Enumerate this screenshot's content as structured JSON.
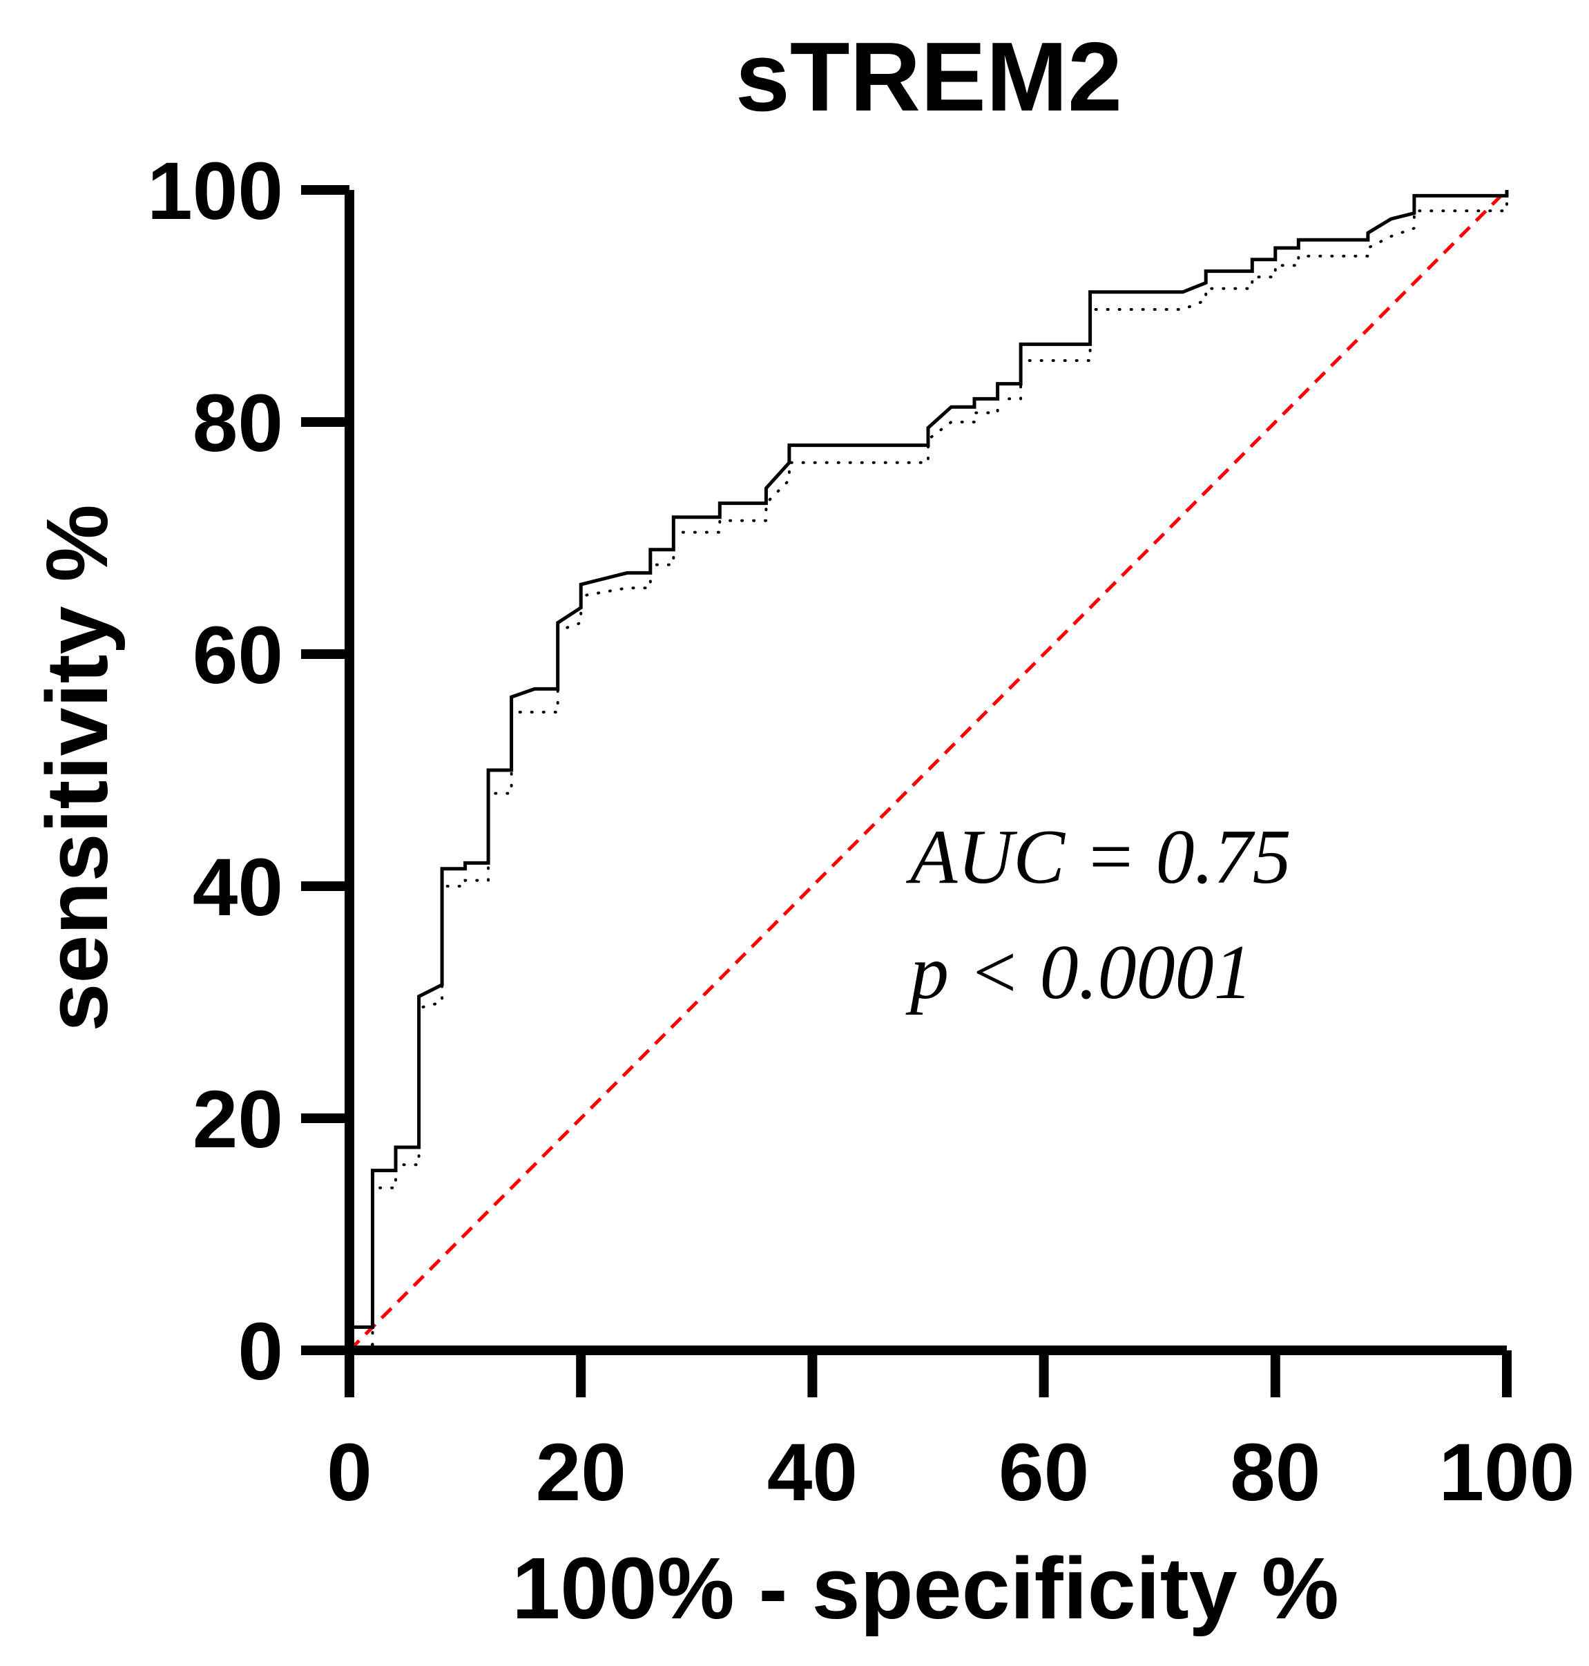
{
  "chart_data": {
    "type": "line",
    "title": "sTREM2",
    "xlabel": "100% - specificity %",
    "ylabel": "sensitivity %",
    "xlim": [
      0,
      100
    ],
    "ylim": [
      0,
      100
    ],
    "xticks": [
      0,
      20,
      40,
      60,
      80,
      100
    ],
    "yticks": [
      0,
      20,
      40,
      60,
      80,
      100
    ],
    "grid": false,
    "series": [
      {
        "role": "roc",
        "style": "solid",
        "color": "#000000",
        "points": [
          [
            0,
            0
          ],
          [
            0,
            2
          ],
          [
            2,
            2
          ],
          [
            2,
            15.5
          ],
          [
            4,
            15.5
          ],
          [
            4,
            17.5
          ],
          [
            6,
            17.5
          ],
          [
            6,
            30.5
          ],
          [
            8,
            31.5
          ],
          [
            8,
            41.5
          ],
          [
            10,
            41.5
          ],
          [
            10,
            42
          ],
          [
            12,
            42
          ],
          [
            12,
            50
          ],
          [
            14,
            50
          ],
          [
            14,
            56.3
          ],
          [
            16,
            57
          ],
          [
            18,
            57
          ],
          [
            18,
            62.7
          ],
          [
            20,
            64
          ],
          [
            20,
            66
          ],
          [
            24,
            67
          ],
          [
            26,
            67
          ],
          [
            26,
            69
          ],
          [
            28,
            69
          ],
          [
            28,
            71.8
          ],
          [
            32,
            71.8
          ],
          [
            32,
            73
          ],
          [
            36,
            73
          ],
          [
            36,
            74.3
          ],
          [
            38,
            76.5
          ],
          [
            38,
            78
          ],
          [
            50,
            78
          ],
          [
            50,
            79.5
          ],
          [
            52,
            81.3
          ],
          [
            54,
            81.3
          ],
          [
            54,
            82
          ],
          [
            56,
            82
          ],
          [
            56,
            83.3
          ],
          [
            58,
            83.3
          ],
          [
            58,
            86.7
          ],
          [
            64,
            86.7
          ],
          [
            64,
            91.2
          ],
          [
            72,
            91.2
          ],
          [
            74,
            92
          ],
          [
            74,
            93
          ],
          [
            78,
            93
          ],
          [
            78,
            94
          ],
          [
            80,
            94
          ],
          [
            80,
            95
          ],
          [
            82,
            95
          ],
          [
            82,
            95.7
          ],
          [
            88,
            95.7
          ],
          [
            88,
            96.3
          ],
          [
            90,
            97.5
          ],
          [
            92,
            98
          ],
          [
            92,
            99.5
          ],
          [
            100,
            99.5
          ],
          [
            100,
            100
          ]
        ]
      },
      {
        "role": "ci-band",
        "style": "dotted",
        "color": "#000000",
        "points": [
          [
            0,
            0
          ],
          [
            2,
            0.5
          ],
          [
            2,
            14
          ],
          [
            4,
            14
          ],
          [
            4,
            16
          ],
          [
            6,
            16
          ],
          [
            6,
            29.5
          ],
          [
            8,
            30
          ],
          [
            8,
            40
          ],
          [
            10,
            40
          ],
          [
            10,
            40.5
          ],
          [
            12,
            40.5
          ],
          [
            12,
            48
          ],
          [
            14,
            48
          ],
          [
            14,
            55
          ],
          [
            18,
            55
          ],
          [
            18,
            62
          ],
          [
            20,
            62.7
          ],
          [
            20,
            65
          ],
          [
            24,
            65.7
          ],
          [
            26,
            65.7
          ],
          [
            26,
            67.7
          ],
          [
            28,
            67.7
          ],
          [
            28,
            70.5
          ],
          [
            32,
            70.5
          ],
          [
            32,
            71.5
          ],
          [
            36,
            71.5
          ],
          [
            36,
            73
          ],
          [
            38,
            75
          ],
          [
            38,
            76.5
          ],
          [
            50,
            76.5
          ],
          [
            50,
            78.5
          ],
          [
            52,
            80
          ],
          [
            54,
            80
          ],
          [
            54,
            80.8
          ],
          [
            56,
            80.8
          ],
          [
            56,
            82
          ],
          [
            58,
            82
          ],
          [
            58,
            85.3
          ],
          [
            64,
            85.3
          ],
          [
            64,
            89.7
          ],
          [
            72,
            89.7
          ],
          [
            74,
            90.5
          ],
          [
            74,
            91.5
          ],
          [
            78,
            91.5
          ],
          [
            78,
            92.5
          ],
          [
            80,
            92.5
          ],
          [
            80,
            93.5
          ],
          [
            82,
            93.5
          ],
          [
            82,
            94.3
          ],
          [
            88,
            94.3
          ],
          [
            88,
            95
          ],
          [
            90,
            96
          ],
          [
            92,
            96.7
          ],
          [
            92,
            98.2
          ],
          [
            100,
            98.2
          ],
          [
            100,
            99
          ]
        ]
      },
      {
        "role": "reference",
        "style": "dashed",
        "color": "#ff0000",
        "points": [
          [
            0,
            0
          ],
          [
            100,
            100
          ]
        ]
      }
    ],
    "annotations": {
      "auc": "AUC = 0.75",
      "p": "p < 0.0001"
    }
  }
}
